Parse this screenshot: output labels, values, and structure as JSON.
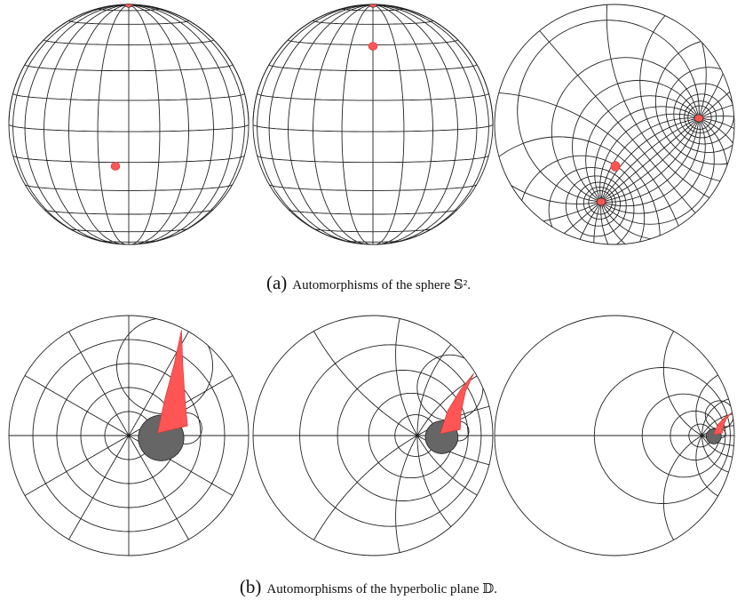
{
  "captions": [
    {
      "label": "(a)",
      "text": "Automorphisms of the sphere 𝕊²."
    },
    {
      "label": "(b)",
      "text": "Automorphisms of the hyperbolic plane 𝔻."
    }
  ]
}
